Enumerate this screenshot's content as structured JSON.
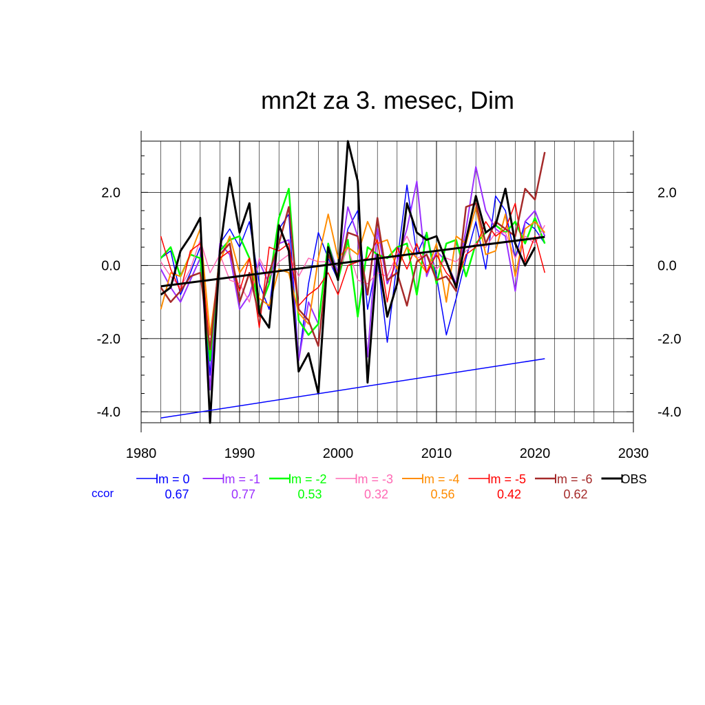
{
  "chart_data": {
    "type": "line",
    "title": "mn2t za 3. mesec, Dim",
    "xlabel": "",
    "ylabel": "",
    "xlim": [
      1980,
      2030
    ],
    "ylim": [
      -4.3,
      3.4
    ],
    "x_ticks": [
      {
        "value": 1980,
        "label": "1980"
      },
      {
        "value": 1990,
        "label": "1990"
      },
      {
        "value": 2000,
        "label": "2000"
      },
      {
        "value": 2010,
        "label": "2010"
      },
      {
        "value": 2020,
        "label": "2020"
      },
      {
        "value": 2030,
        "label": "2030"
      }
    ],
    "y_ticks": [
      {
        "value": 2,
        "label": "2.0"
      },
      {
        "value": 0,
        "label": "0.0"
      },
      {
        "value": -2,
        "label": "-2.0"
      },
      {
        "value": -4,
        "label": "-4.0"
      }
    ],
    "grid": true,
    "legend_placement": "bottom",
    "ccor_label": "ccor",
    "series": [
      {
        "name": "lm = 0",
        "color": "#0000ff",
        "ccor": "0.67",
        "width": 1.5,
        "x": [
          1982,
          1983,
          1984,
          1985,
          1986,
          1987,
          1988,
          1989,
          1990,
          1991,
          1992,
          1993,
          1994,
          1995,
          1996,
          1997,
          1998,
          1999,
          2000,
          2001,
          2002,
          2003,
          2004,
          2005,
          2006,
          2007,
          2008,
          2009,
          2010,
          2011,
          2012,
          2013,
          2014,
          2015,
          2016,
          2017,
          2018,
          2019,
          2020,
          2021
        ],
        "y": [
          0.2,
          0.4,
          -0.8,
          -0.2,
          0.5,
          -3.0,
          0.6,
          1.0,
          0.5,
          1.2,
          -0.5,
          -1.2,
          1.0,
          1.4,
          -2.6,
          -0.5,
          0.9,
          0.2,
          -0.4,
          1.0,
          1.5,
          -1.2,
          0.2,
          -2.1,
          0.1,
          2.2,
          0.3,
          0.9,
          -0.3,
          -1.9,
          -0.9,
          0.2,
          1.2,
          -0.1,
          1.9,
          1.5,
          0.2,
          1.2,
          1.0,
          0.6
        ]
      },
      {
        "name": "lm = -1",
        "color": "#9b30ff",
        "ccor": "0.77",
        "width": 2,
        "x": [
          1982,
          1983,
          1984,
          1985,
          1986,
          1987,
          1988,
          1989,
          1990,
          1991,
          1992,
          1993,
          1994,
          1995,
          1996,
          1997,
          1998,
          1999,
          2000,
          2001,
          2002,
          2003,
          2004,
          2005,
          2006,
          2007,
          2008,
          2009,
          2010,
          2011,
          2012,
          2013,
          2014,
          2015,
          2016,
          2017,
          2018,
          2019,
          2020,
          2021
        ],
        "y": [
          -0.1,
          -0.6,
          -1.0,
          -0.4,
          0.2,
          -3.4,
          0.6,
          0.3,
          -1.2,
          -0.8,
          0.1,
          -0.5,
          0.6,
          0.7,
          -2.6,
          -1.0,
          -1.6,
          0.6,
          -0.2,
          1.6,
          0.8,
          -2.5,
          1.0,
          -0.5,
          0.1,
          1.0,
          2.3,
          -0.3,
          0.4,
          0.1,
          -0.5,
          1.0,
          2.7,
          1.5,
          1.0,
          0.8,
          -0.7,
          1.2,
          1.5,
          0.8
        ]
      },
      {
        "name": "lm = -2",
        "color": "#00ff00",
        "ccor": "0.53",
        "width": 2.5,
        "x": [
          1982,
          1983,
          1984,
          1985,
          1986,
          1987,
          1988,
          1989,
          1990,
          1991,
          1992,
          1993,
          1994,
          1995,
          1996,
          1997,
          1998,
          1999,
          2000,
          2001,
          2002,
          2003,
          2004,
          2005,
          2006,
          2007,
          2008,
          2009,
          2010,
          2011,
          2012,
          2013,
          2014,
          2015,
          2016,
          2017,
          2018,
          2019,
          2020,
          2021
        ],
        "y": [
          0.2,
          0.5,
          -0.3,
          0.3,
          0.2,
          -2.6,
          0.4,
          0.7,
          0.8,
          0.2,
          -1.2,
          -0.5,
          1.3,
          2.1,
          -1.5,
          -1.9,
          -1.6,
          0.6,
          -0.4,
          0.7,
          -1.4,
          0.5,
          0.3,
          0.2,
          0.5,
          0.6,
          -0.8,
          0.9,
          -0.5,
          0.6,
          0.7,
          -0.3,
          0.6,
          0.9,
          1.1,
          0.9,
          1.2,
          0.6,
          1.3,
          0.6
        ]
      },
      {
        "name": "lm = -3",
        "color": "#ff69b4",
        "ccor": "0.32",
        "width": 1.5,
        "x": [
          1982,
          1983,
          1984,
          1985,
          1986,
          1987,
          1988,
          1989,
          1990,
          1991,
          1992,
          1993,
          1994,
          1995,
          1996,
          1997,
          1998,
          1999,
          2000,
          2001,
          2002,
          2003,
          2004,
          2005,
          2006,
          2007,
          2008,
          2009,
          2010,
          2011,
          2012,
          2013,
          2014,
          2015,
          2016,
          2017,
          2018,
          2019,
          2020,
          2021
        ],
        "y": [
          0.1,
          -0.3,
          -0.6,
          -0.1,
          0.7,
          -0.2,
          0.3,
          -0.4,
          -0.5,
          -1.0,
          0.2,
          -0.3,
          0.1,
          0.3,
          -0.3,
          0.2,
          0.1,
          0.1,
          -0.2,
          0.5,
          -0.4,
          -0.5,
          -0.2,
          -0.3,
          0.3,
          0.8,
          0.2,
          0.3,
          -0.1,
          0.2,
          0.1,
          0.4,
          0.6,
          0.5,
          0.9,
          0.9,
          0.2,
          0.8,
          0.6,
          1.1
        ]
      },
      {
        "name": "lm = -4",
        "color": "#ff8c00",
        "ccor": "0.56",
        "width": 2,
        "x": [
          1982,
          1983,
          1984,
          1985,
          1986,
          1987,
          1988,
          1989,
          1990,
          1991,
          1992,
          1993,
          1994,
          1995,
          1996,
          1997,
          1998,
          1999,
          2000,
          2001,
          2002,
          2003,
          2004,
          2005,
          2006,
          2007,
          2008,
          2009,
          2010,
          2011,
          2012,
          2013,
          2014,
          2015,
          2016,
          2017,
          2018,
          2019,
          2020,
          2021
        ],
        "y": [
          -1.2,
          -0.2,
          -0.3,
          0.3,
          1.0,
          -1.9,
          0.1,
          0.8,
          -0.2,
          0.2,
          -0.9,
          -1.1,
          -0.1,
          -0.2,
          -1.3,
          -1.6,
          0.2,
          1.4,
          0.2,
          0.5,
          0.3,
          1.2,
          0.6,
          0.7,
          -0.1,
          0.5,
          0.2,
          -0.2,
          0.6,
          -1.0,
          0.8,
          0.6,
          1.6,
          0.3,
          0.4,
          1.4,
          -0.3,
          1.0,
          1.2,
          0.9
        ]
      },
      {
        "name": "lm = -5",
        "color": "#ff0000",
        "ccor": "0.42",
        "width": 1.5,
        "x": [
          1982,
          1983,
          1984,
          1985,
          1986,
          1987,
          1988,
          1989,
          1990,
          1991,
          1992,
          1993,
          1994,
          1995,
          1996,
          1997,
          1998,
          1999,
          2000,
          2001,
          2002,
          2003,
          2004,
          2005,
          2006,
          2007,
          2008,
          2009,
          2010,
          2011,
          2012,
          2013,
          2014,
          2015,
          2016,
          2017,
          2018,
          2019,
          2020,
          2021
        ],
        "y": [
          0.8,
          -0.1,
          -0.7,
          0.4,
          0.6,
          -2.3,
          0.2,
          0.4,
          -0.7,
          0.2,
          -1.7,
          0.5,
          0.4,
          0.6,
          -1.1,
          -0.8,
          -0.6,
          -0.2,
          -0.8,
          0.0,
          0.1,
          0.2,
          0.7,
          -1.0,
          0.5,
          -0.1,
          0.6,
          -0.2,
          0.3,
          -0.2,
          -0.5,
          0.3,
          0.5,
          1.2,
          0.8,
          1.0,
          1.7,
          0.1,
          0.8,
          -0.2
        ]
      },
      {
        "name": "lm = -6",
        "color": "#a52a2a",
        "ccor": "0.62",
        "width": 2.5,
        "x": [
          1982,
          1983,
          1984,
          1985,
          1986,
          1987,
          1988,
          1989,
          1990,
          1991,
          1992,
          1993,
          1994,
          1995,
          1996,
          1997,
          1998,
          1999,
          2000,
          2001,
          2002,
          2003,
          2004,
          2005,
          2006,
          2007,
          2008,
          2009,
          2010,
          2011,
          2012,
          2013,
          2014,
          2015,
          2016,
          2017,
          2018,
          2019,
          2020,
          2021
        ],
        "y": [
          -0.6,
          -1.0,
          -0.7,
          -0.3,
          -0.2,
          -2.3,
          0.3,
          0.6,
          -1.0,
          -0.2,
          -1.4,
          -0.2,
          0.6,
          1.6,
          -1.2,
          -1.5,
          -2.2,
          0.3,
          -0.3,
          0.9,
          0.8,
          -0.8,
          1.3,
          -0.4,
          -0.2,
          -1.1,
          0.1,
          0.3,
          -0.4,
          -0.3,
          -0.7,
          1.6,
          1.7,
          0.6,
          1.2,
          1.0,
          0.8,
          2.1,
          1.8,
          3.1
        ]
      },
      {
        "name": "OBS",
        "color": "#000000",
        "ccor": "",
        "width": 3,
        "x": [
          1982,
          1983,
          1984,
          1985,
          1986,
          1987,
          1988,
          1989,
          1990,
          1991,
          1992,
          1993,
          1994,
          1995,
          1996,
          1997,
          1998,
          1999,
          2000,
          2001,
          2002,
          2003,
          2004,
          2005,
          2006,
          2007,
          2008,
          2009,
          2010,
          2011,
          2012,
          2013,
          2014,
          2015,
          2016,
          2017,
          2018,
          2019,
          2020
        ],
        "y": [
          -0.8,
          -0.6,
          0.4,
          0.8,
          1.3,
          -4.3,
          0.4,
          2.4,
          0.9,
          1.7,
          -1.3,
          -1.7,
          1.1,
          0.4,
          -2.9,
          -2.4,
          -3.5,
          0.5,
          -0.4,
          3.4,
          2.3,
          -3.2,
          0.3,
          -1.4,
          -0.5,
          1.7,
          0.9,
          0.7,
          0.8,
          0.1,
          -0.6,
          0.7,
          1.9,
          0.9,
          1.1,
          2.1,
          0.6,
          0.0,
          0.5
        ]
      }
    ],
    "trend_lines": [
      {
        "series": "OBS",
        "color": "#000000",
        "width": 3,
        "x": [
          1982,
          2021
        ],
        "y": [
          -0.57,
          0.78
        ]
      },
      {
        "series": "lm = 0",
        "color": "#0000ff",
        "width": 1.5,
        "x": [
          1982,
          2021
        ],
        "y": [
          -4.17,
          -2.55
        ]
      }
    ]
  }
}
